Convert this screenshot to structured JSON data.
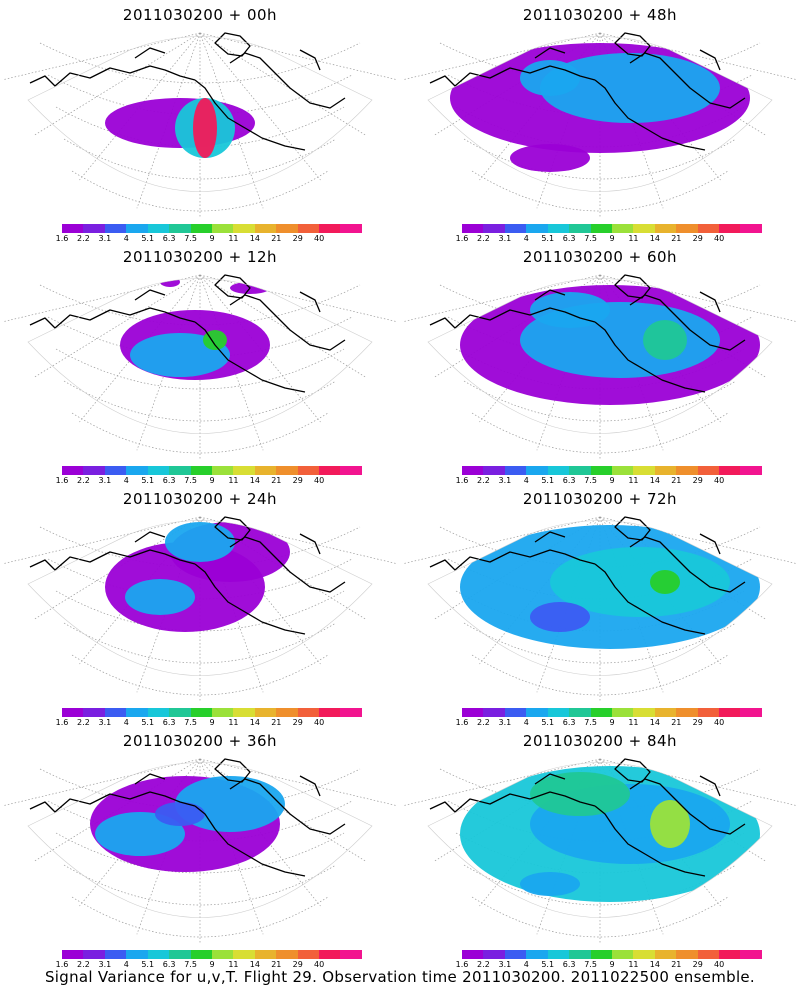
{
  "panels": [
    {
      "title": "2011030200 + 00h",
      "stage": 0
    },
    {
      "title": "2011030200 + 48h",
      "stage": 4
    },
    {
      "title": "2011030200 + 12h",
      "stage": 1
    },
    {
      "title": "2011030200 + 60h",
      "stage": 5
    },
    {
      "title": "2011030200 + 24h",
      "stage": 2
    },
    {
      "title": "2011030200 + 72h",
      "stage": 6
    },
    {
      "title": "2011030200 + 36h",
      "stage": 3
    },
    {
      "title": "2011030200 + 84h",
      "stage": 7
    }
  ],
  "colorbar": {
    "colors": [
      "#9b00d6",
      "#7a1fe0",
      "#3b5cf2",
      "#1aa7ef",
      "#18c7d9",
      "#20c796",
      "#27cf2b",
      "#9be13a",
      "#d8de34",
      "#e8b32d",
      "#ef8f2c",
      "#f2603a",
      "#f21a5a",
      "#f2148f"
    ],
    "labels": [
      "1.6",
      "2.2",
      "3.1",
      "4",
      "5.1",
      "6.3",
      "7.5",
      "9",
      "11",
      "14",
      "21",
      "29",
      "40"
    ]
  },
  "footer": "Signal Variance for u,v,T. Flight 29. Observation time 2011030200. 2011022500 ensemble."
}
